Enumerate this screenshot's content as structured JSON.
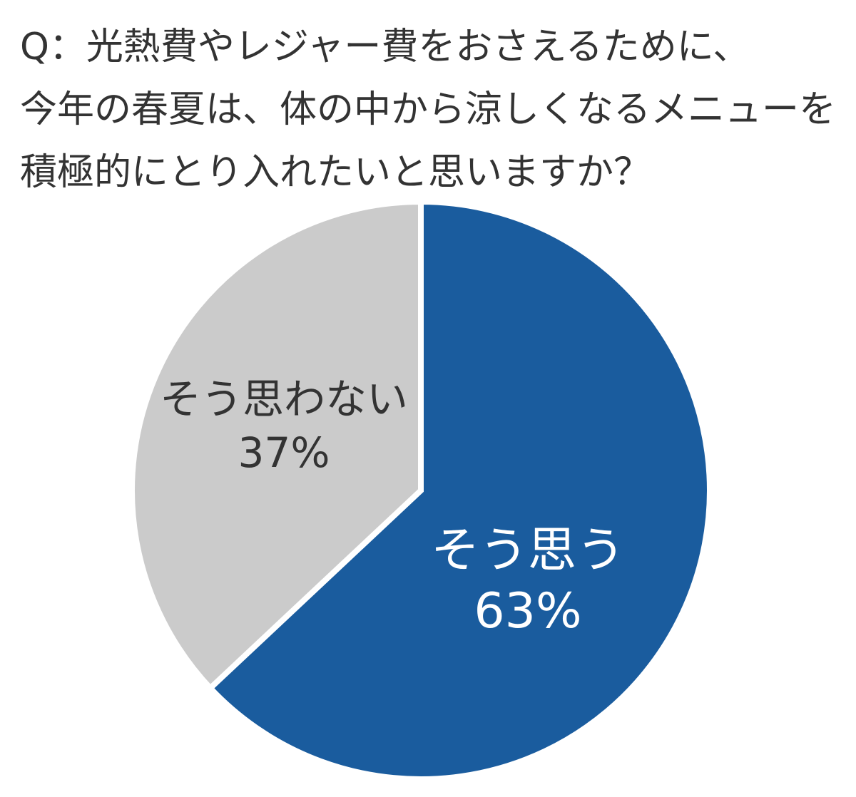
{
  "question": {
    "lines": [
      "Q：光熱費やレジャー費をおさえるために、",
      "今年の春夏は、体の中から涼しくなるメニューを",
      "積極的にとり入れたいと思いますか？"
    ]
  },
  "chart_data": {
    "type": "pie",
    "title": "Q：光熱費やレジャー費をおさえるために、今年の春夏は、体の中から涼しくなるメニューを積極的にとり入れたいと思いますか？",
    "slices": [
      {
        "label": "そう思う",
        "value": 63,
        "display": "63%",
        "color": "#1a5c9e",
        "text_color": "#ffffff"
      },
      {
        "label": "そう思わない",
        "value": 37,
        "display": "37%",
        "color": "#cbcbcb",
        "text_color": "#333333"
      }
    ],
    "start": "12 o'clock",
    "direction": "clockwise"
  }
}
